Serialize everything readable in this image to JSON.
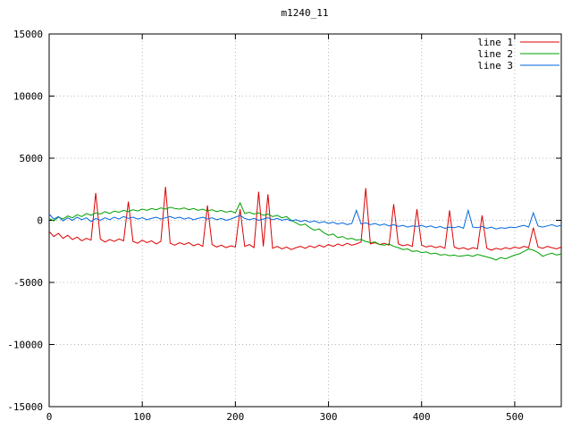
{
  "chart_data": {
    "type": "line",
    "title": "m1240_11",
    "xlabel": "",
    "ylabel": "",
    "xlim": [
      0,
      550
    ],
    "ylim": [
      -15000,
      15000
    ],
    "xticks": [
      0,
      100,
      200,
      300,
      400,
      500
    ],
    "yticks": [
      -15000,
      -10000,
      -5000,
      0,
      5000,
      10000,
      15000
    ],
    "grid": true,
    "grid_style": "dotted",
    "legend_position": "top-right-inside",
    "background": "#ffffff",
    "x_start": 0,
    "x_step": 5,
    "series": [
      {
        "name": "line 1",
        "color": "#dd0000",
        "values": [
          -900,
          -1300,
          -1050,
          -1450,
          -1200,
          -1550,
          -1350,
          -1650,
          -1450,
          -1600,
          2200,
          -1500,
          -1750,
          -1550,
          -1700,
          -1500,
          -1650,
          1500,
          -1700,
          -1850,
          -1600,
          -1800,
          -1650,
          -1900,
          -1700,
          2700,
          -1850,
          -2000,
          -1800,
          -1950,
          -1800,
          -2050,
          -1900,
          -2100,
          1200,
          -1950,
          -2150,
          -2000,
          -2200,
          -2050,
          -2150,
          900,
          -2100,
          -1950,
          -2200,
          2300,
          -2100,
          2100,
          -2250,
          -2100,
          -2300,
          -2150,
          -2350,
          -2200,
          -2100,
          -2250,
          -2050,
          -2200,
          -2000,
          -2150,
          -1950,
          -2100,
          -1900,
          -2050,
          -1850,
          -2000,
          -1900,
          -1750,
          2600,
          -1900,
          -1800,
          -1950,
          -1850,
          -2000,
          1300,
          -1900,
          -2050,
          -1950,
          -2100,
          900,
          -2000,
          -2150,
          -2050,
          -2200,
          -2100,
          -2250,
          800,
          -2150,
          -2300,
          -2200,
          -2350,
          -2200,
          -2300,
          400,
          -2250,
          -2400,
          -2250,
          -2350,
          -2200,
          -2300,
          -2150,
          -2250,
          -2100,
          -2200,
          -600,
          -2150,
          -2250,
          -2100,
          -2200,
          -2300,
          -2150
        ]
      },
      {
        "name": "line 2",
        "color": "#00a000",
        "values": [
          150,
          -50,
          250,
          100,
          350,
          200,
          450,
          300,
          550,
          400,
          600,
          500,
          700,
          550,
          750,
          650,
          800,
          700,
          850,
          750,
          900,
          800,
          950,
          850,
          1000,
          900,
          1050,
          950,
          900,
          1000,
          850,
          950,
          800,
          900,
          750,
          850,
          700,
          800,
          650,
          750,
          600,
          1400,
          550,
          650,
          500,
          600,
          400,
          500,
          300,
          400,
          200,
          300,
          0,
          -200,
          -400,
          -300,
          -600,
          -800,
          -700,
          -1000,
          -1200,
          -1100,
          -1400,
          -1300,
          -1500,
          -1450,
          -1600,
          -1550,
          -1700,
          -1800,
          -1750,
          -1950,
          -2000,
          -1900,
          -2100,
          -2200,
          -2350,
          -2300,
          -2500,
          -2450,
          -2600,
          -2550,
          -2700,
          -2650,
          -2800,
          -2750,
          -2850,
          -2800,
          -2900,
          -2850,
          -2800,
          -2900,
          -2750,
          -2850,
          -2950,
          -3050,
          -3200,
          -3000,
          -3100,
          -2950,
          -2800,
          -2700,
          -2500,
          -2300,
          -2400,
          -2600,
          -2900,
          -2750,
          -2650,
          -2800,
          -2700
        ]
      },
      {
        "name": "line 3",
        "color": "#0066dd",
        "values": [
          500,
          100,
          300,
          -50,
          200,
          0,
          250,
          50,
          200,
          -100,
          150,
          0,
          200,
          50,
          250,
          100,
          300,
          150,
          250,
          100,
          200,
          50,
          150,
          250,
          100,
          200,
          300,
          150,
          250,
          100,
          200,
          50,
          150,
          250,
          100,
          200,
          50,
          150,
          0,
          100,
          250,
          400,
          150,
          50,
          150,
          0,
          100,
          200,
          50,
          150,
          0,
          100,
          -50,
          50,
          -100,
          0,
          -150,
          -50,
          -200,
          -100,
          -250,
          -150,
          -300,
          -200,
          -350,
          -250,
          800,
          -300,
          -200,
          -350,
          -250,
          -400,
          -300,
          -450,
          -350,
          -500,
          -400,
          -550,
          -450,
          -500,
          -400,
          -550,
          -450,
          -600,
          -500,
          -650,
          -550,
          -600,
          -500,
          -650,
          800,
          -550,
          -600,
          -500,
          -650,
          -550,
          -700,
          -600,
          -650,
          -550,
          -600,
          -500,
          -400,
          -550,
          600,
          -450,
          -550,
          -450,
          -350,
          -500,
          -400
        ]
      }
    ]
  }
}
